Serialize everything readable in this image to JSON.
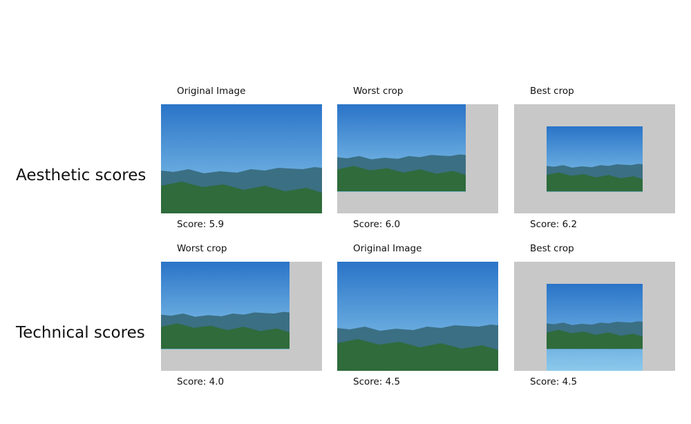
{
  "rows": [
    {
      "label": "Aesthetic scores",
      "cells": [
        {
          "title": "Original Image",
          "score": "Score: 5.9",
          "crop": "original"
        },
        {
          "title": "Worst crop",
          "score": "Score: 6.0",
          "crop": "top-left"
        },
        {
          "title": "Best crop",
          "score": "Score: 6.2",
          "crop": "center"
        }
      ]
    },
    {
      "label": "Technical scores",
      "cells": [
        {
          "title": "Worst crop",
          "score": "Score: 4.0",
          "crop": "top-left"
        },
        {
          "title": "Original Image",
          "score": "Score: 4.5",
          "crop": "original"
        },
        {
          "title": "Best crop",
          "score": "Score: 4.5",
          "crop": "center-bottom"
        }
      ]
    }
  ],
  "colors": {
    "padding": "#c8c8c8",
    "sky_top": "#2a74c8",
    "sky_bottom": "#8ccaec",
    "far_mountains": "#3b6f83",
    "near_hills": "#2f6a33"
  }
}
